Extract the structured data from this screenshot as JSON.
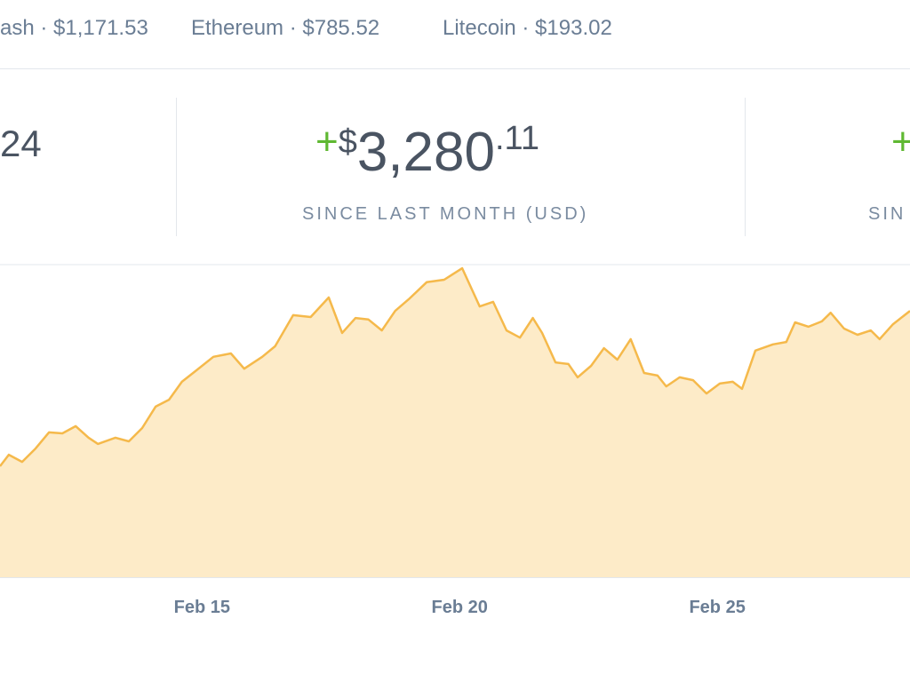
{
  "tickers": [
    "ash · $1,171.53",
    "Ethereum · $785.52",
    "Litecoin · $193.02"
  ],
  "stats": [
    {
      "amount": "24"
    },
    {
      "sign": "+",
      "currency": "$",
      "whole": "3,280",
      "cents": ".11",
      "label": "SINCE LAST MONTH (USD)"
    },
    {
      "sign": "+",
      "label": "SIN"
    }
  ],
  "chart_data": {
    "type": "area",
    "line_color": "#f5b94b",
    "fill_color": "#fdebc8",
    "xlim": [
      11.08,
      28.74
    ],
    "ylim": [
      0,
      100
    ],
    "xticks": [
      {
        "value": 15,
        "label": "Feb 15"
      },
      {
        "value": 20,
        "label": "Feb 20"
      },
      {
        "value": 25,
        "label": "Feb 25"
      }
    ],
    "x": [
      11.08,
      11.25,
      11.51,
      11.77,
      12.03,
      12.29,
      12.55,
      12.8,
      12.98,
      13.32,
      13.58,
      13.84,
      14.1,
      14.36,
      14.61,
      14.87,
      15.22,
      15.56,
      15.82,
      16.17,
      16.42,
      16.77,
      17.11,
      17.46,
      17.72,
      17.98,
      18.23,
      18.49,
      18.75,
      19.01,
      19.36,
      19.7,
      20.05,
      20.39,
      20.65,
      20.91,
      21.17,
      21.42,
      21.6,
      21.86,
      22.11,
      22.29,
      22.55,
      22.8,
      23.06,
      23.32,
      23.58,
      23.84,
      24.01,
      24.27,
      24.53,
      24.79,
      25.05,
      25.3,
      25.48,
      25.74,
      26.08,
      26.34,
      26.51,
      26.77,
      27.03,
      27.2,
      27.46,
      27.72,
      27.98,
      28.15,
      28.41,
      28.74
    ],
    "values": [
      35.7,
      39.4,
      37.1,
      41.4,
      46.6,
      46.3,
      48.6,
      44.9,
      42.9,
      44.9,
      43.7,
      48.0,
      54.9,
      57.1,
      62.9,
      66.3,
      70.9,
      72.0,
      67.1,
      70.9,
      74.3,
      84.3,
      83.7,
      90.0,
      78.6,
      83.4,
      82.9,
      79.4,
      85.7,
      89.4,
      94.9,
      95.7,
      99.4,
      87.1,
      88.6,
      79.4,
      77.1,
      83.4,
      78.6,
      69.1,
      68.6,
      64.3,
      68.0,
      73.7,
      70.0,
      76.6,
      65.7,
      64.9,
      61.4,
      64.3,
      63.4,
      59.1,
      62.3,
      62.9,
      60.6,
      72.9,
      74.9,
      75.7,
      82.0,
      80.6,
      82.3,
      85.1,
      80.0,
      78.0,
      79.4,
      76.6,
      81.4,
      85.7
    ]
  }
}
